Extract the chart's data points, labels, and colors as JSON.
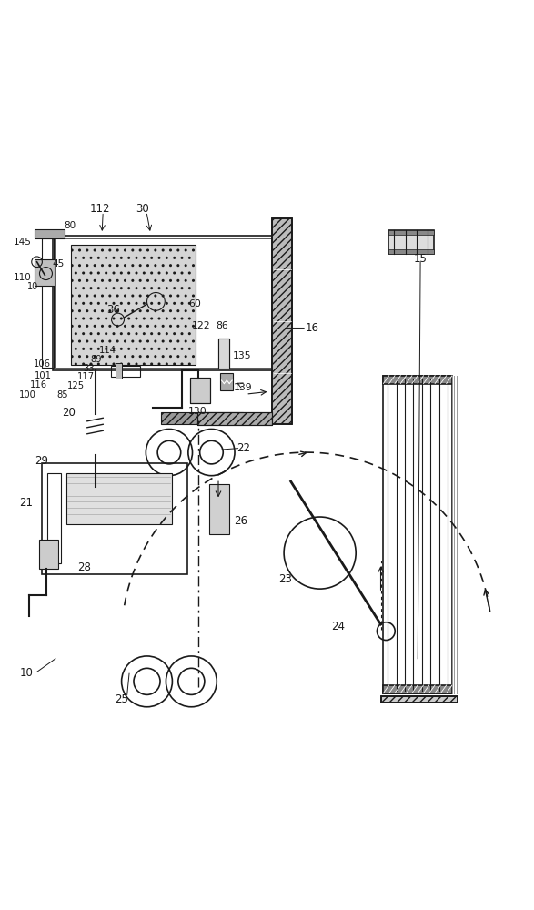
{
  "bg_color": "#ffffff",
  "line_color": "#1a1a1a",
  "figsize": [
    5.87,
    10.0
  ],
  "dpi": 100
}
